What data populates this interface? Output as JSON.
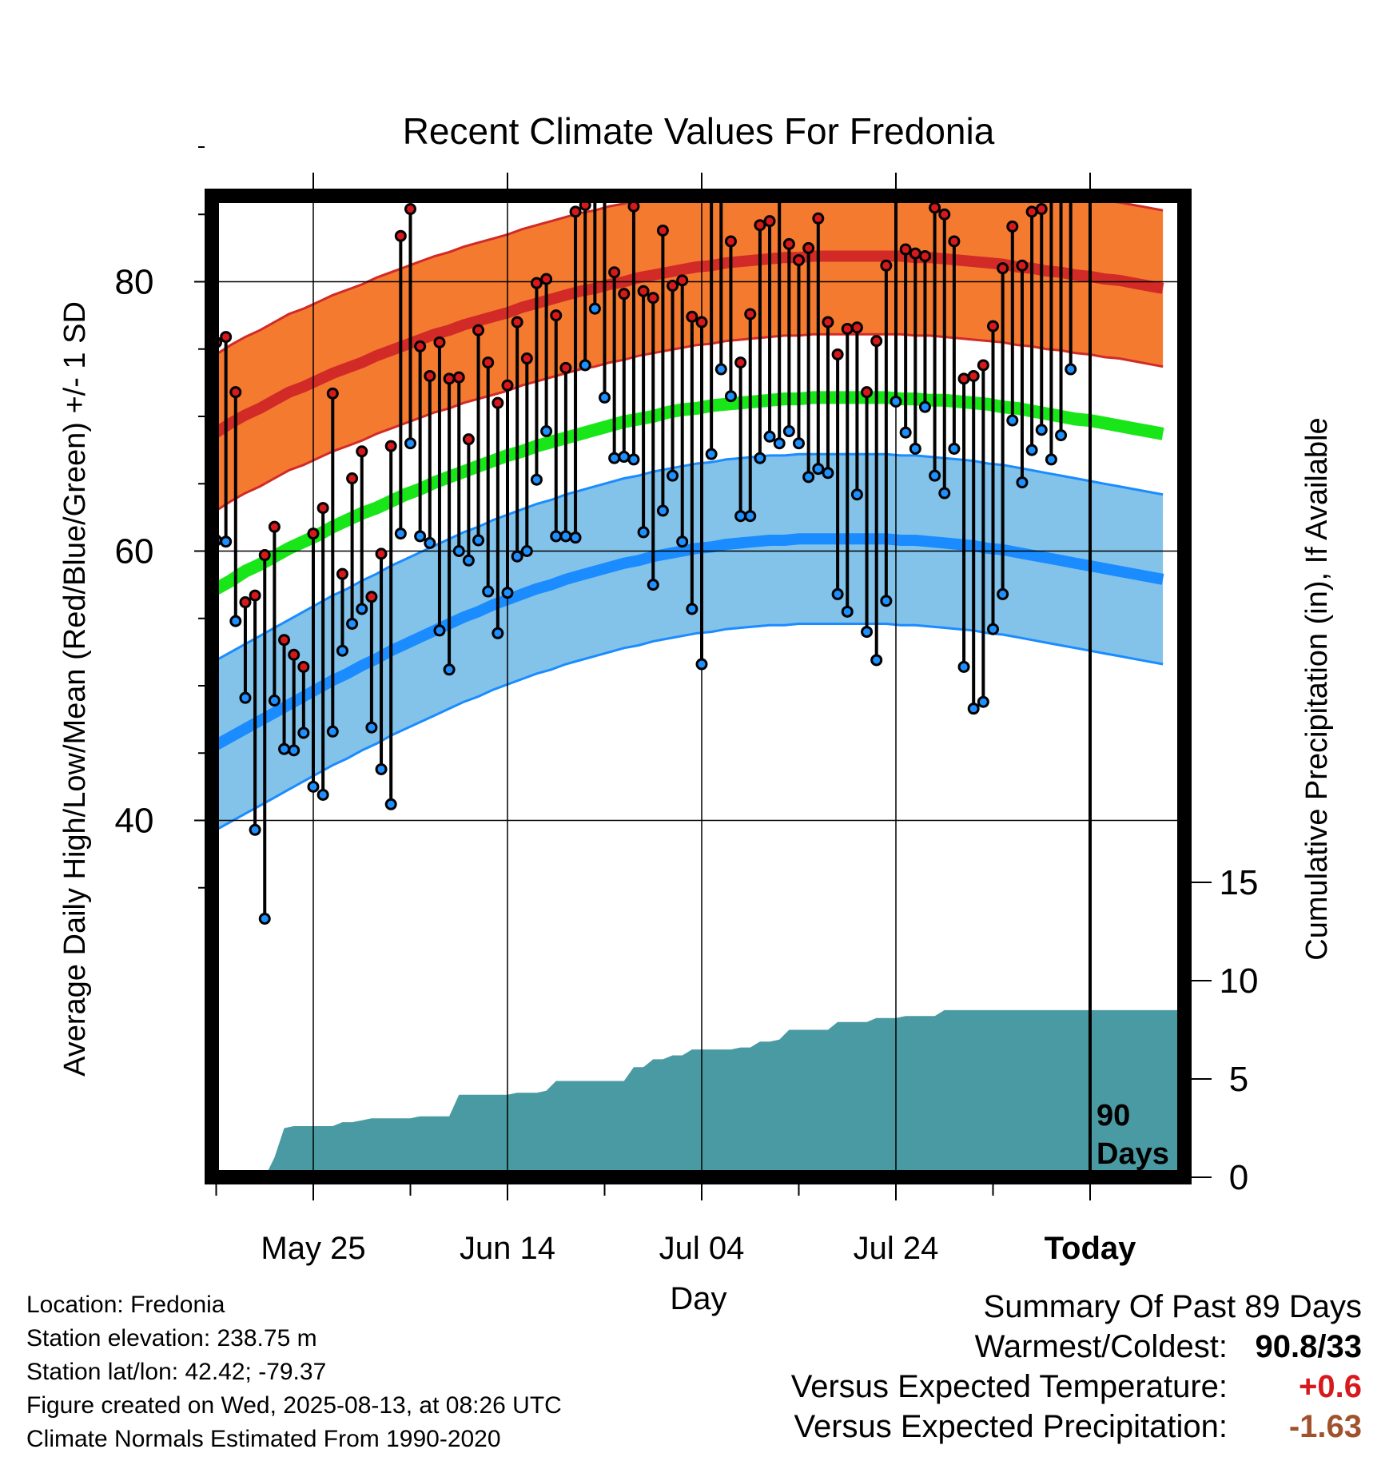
{
  "chart_data": {
    "type": "line",
    "title": "Recent Climate Values For Fredonia",
    "xlabel": "Day",
    "ylabel_left": "Average Daily High/Low/Mean (Red/Blue/Green) +/- 1 SD",
    "ylabel_right": "Cumulative Precipitation (in), If Available",
    "x_ticks": [
      "May 25",
      "Jun 14",
      "Jul 04",
      "Jul 24",
      "Today"
    ],
    "x_tick_days": [
      10,
      30,
      50,
      70,
      90
    ],
    "xlim": [
      -1,
      99
    ],
    "y_left_ticks": [
      40,
      60,
      80
    ],
    "y_left_lim": [
      24,
      96
    ],
    "y_right_ticks": [
      0,
      5,
      10,
      15
    ],
    "y_right_lim": [
      0,
      50
    ],
    "grid": true,
    "marker_label": "90\nDays",
    "today_day": 90,
    "series": [
      {
        "name": "Observed High",
        "color": "#d7191c",
        "values": [
          75.5,
          75.9,
          71.8,
          56.2,
          56.7,
          59.7,
          61.8,
          53.4,
          52.3,
          51.4,
          61.3,
          63.2,
          71.7,
          58.3,
          65.4,
          67.4,
          56.6,
          59.8,
          67.8,
          83.4,
          85.4,
          75.2,
          73.0,
          75.5,
          72.8,
          72.9,
          68.3,
          76.4,
          74.0,
          71.0,
          72.3,
          77.0,
          74.3,
          79.9,
          80.2,
          77.5,
          73.6,
          85.2,
          85.7,
          89.3,
          89.3,
          80.7,
          79.1,
          85.6,
          79.3,
          78.8,
          83.8,
          79.7,
          80.1,
          77.4,
          77.0,
          86.6,
          89.3,
          83.0,
          74.0,
          77.6,
          84.2,
          84.5,
          90.8,
          82.8,
          81.6,
          82.5,
          84.7,
          77.0,
          74.6,
          76.5,
          76.6,
          71.8,
          75.6,
          81.2,
          87.6,
          82.4,
          82.1,
          81.9,
          85.5,
          85.0,
          83.0,
          72.8,
          73.0,
          73.8,
          76.7,
          81.0,
          84.1,
          81.2,
          85.2,
          85.4,
          86.6,
          87.4,
          88.1
        ]
      },
      {
        "name": "Observed Low",
        "color": "#1e90ff",
        "values": [
          60.8,
          60.7,
          54.8,
          49.1,
          39.3,
          32.7,
          48.9,
          45.3,
          45.2,
          46.5,
          42.5,
          41.9,
          46.6,
          52.6,
          54.6,
          55.7,
          46.9,
          43.8,
          41.2,
          61.3,
          68.0,
          61.1,
          60.6,
          54.1,
          51.2,
          60.0,
          59.3,
          60.8,
          57.0,
          53.9,
          56.9,
          59.6,
          60.0,
          65.3,
          68.9,
          61.1,
          61.1,
          61.0,
          73.8,
          78.0,
          71.4,
          66.9,
          67.0,
          66.8,
          61.4,
          57.5,
          63.0,
          65.6,
          60.7,
          55.7,
          51.6,
          67.2,
          73.5,
          71.5,
          62.6,
          62.6,
          66.9,
          68.5,
          68.0,
          68.9,
          68.0,
          65.5,
          66.1,
          65.8,
          56.8,
          55.5,
          64.2,
          54.0,
          51.9,
          56.3,
          71.1,
          68.8,
          67.6,
          70.7,
          65.6,
          64.3,
          67.6,
          51.4,
          48.3,
          48.8,
          54.2,
          56.8,
          69.7,
          65.1,
          67.5,
          69.0,
          66.8,
          68.6,
          73.5
        ]
      }
    ],
    "normal_high_mean": [
      68.8,
      69.5,
      70.1,
      70.6,
      71.2,
      71.8,
      72.2,
      72.7,
      73.2,
      73.6,
      74.0,
      74.5,
      74.9,
      75.3,
      75.7,
      76.1,
      76.4,
      76.8,
      77.1,
      77.4,
      77.7,
      78.1,
      78.4,
      78.7,
      79.0,
      79.3,
      79.5,
      79.8,
      80.0,
      80.3,
      80.5,
      80.7,
      80.9,
      81.1,
      81.2,
      81.4,
      81.5,
      81.6,
      81.7,
      81.8,
      81.8,
      81.9,
      81.9,
      81.9,
      81.9,
      81.9,
      81.9,
      81.9,
      81.8,
      81.8,
      81.7,
      81.6,
      81.5,
      81.4,
      81.3,
      81.1,
      81.0,
      80.8,
      80.7,
      80.5,
      80.4,
      80.2,
      80.1,
      79.9,
      79.7,
      79.5
    ],
    "normal_high_sd": 5.8,
    "normal_low_mean": [
      45.6,
      46.2,
      46.8,
      47.4,
      48.0,
      48.6,
      49.2,
      49.8,
      50.4,
      50.9,
      51.5,
      52.0,
      52.6,
      53.1,
      53.6,
      54.1,
      54.6,
      55.1,
      55.5,
      56.0,
      56.4,
      56.8,
      57.2,
      57.5,
      57.9,
      58.2,
      58.5,
      58.8,
      59.1,
      59.3,
      59.6,
      59.8,
      60.0,
      60.2,
      60.3,
      60.5,
      60.6,
      60.7,
      60.8,
      60.8,
      60.9,
      60.9,
      60.9,
      60.9,
      60.9,
      60.9,
      60.9,
      60.8,
      60.8,
      60.7,
      60.6,
      60.5,
      60.4,
      60.2,
      60.1,
      59.9,
      59.7,
      59.5,
      59.3,
      59.1,
      58.9,
      58.7,
      58.5,
      58.3,
      58.1,
      57.9
    ],
    "normal_low_sd": 6.3,
    "normal_mean": [
      57.2,
      57.8,
      58.5,
      59.0,
      59.6,
      60.2,
      60.7,
      61.2,
      61.8,
      62.3,
      62.8,
      63.2,
      63.7,
      64.2,
      64.6,
      65.1,
      65.5,
      65.9,
      66.3,
      66.7,
      67.1,
      67.4,
      67.8,
      68.1,
      68.4,
      68.7,
      69.0,
      69.3,
      69.6,
      69.8,
      70.0,
      70.3,
      70.5,
      70.6,
      70.8,
      70.9,
      71.0,
      71.1,
      71.2,
      71.3,
      71.3,
      71.4,
      71.4,
      71.4,
      71.4,
      71.4,
      71.4,
      71.3,
      71.3,
      71.2,
      71.2,
      71.1,
      71.0,
      70.9,
      70.7,
      70.6,
      70.4,
      70.2,
      70.0,
      69.8,
      69.7,
      69.5,
      69.3,
      69.1,
      68.9,
      68.7
    ],
    "normals_day_step": 1.5,
    "cumulative_precip": [
      0,
      0,
      0,
      0,
      0,
      0,
      1.0,
      2.5,
      2.6,
      2.6,
      2.6,
      2.6,
      2.6,
      2.8,
      2.8,
      2.9,
      3.0,
      3.0,
      3.0,
      3.0,
      3.0,
      3.1,
      3.1,
      3.1,
      3.1,
      4.2,
      4.2,
      4.2,
      4.2,
      4.2,
      4.2,
      4.3,
      4.3,
      4.3,
      4.4,
      4.9,
      4.9,
      4.9,
      4.9,
      4.9,
      4.9,
      4.9,
      4.9,
      5.6,
      5.6,
      6.0,
      6.0,
      6.2,
      6.2,
      6.5,
      6.5,
      6.5,
      6.5,
      6.5,
      6.6,
      6.6,
      6.9,
      6.9,
      7.0,
      7.5,
      7.5,
      7.5,
      7.5,
      7.5,
      7.9,
      7.9,
      7.9,
      7.9,
      8.1,
      8.1,
      8.1,
      8.2,
      8.2,
      8.2,
      8.2,
      8.5,
      8.5,
      8.5,
      8.5,
      8.5,
      8.5,
      8.5,
      8.5,
      8.5,
      8.5,
      8.5,
      8.5,
      8.5,
      8.5,
      8.5,
      8.5,
      8.5,
      8.5,
      8.5,
      8.5,
      8.5,
      8.5,
      8.5,
      8.5,
      8.5
    ],
    "precip_color": "#4a9aa3",
    "colors": {
      "high_band": "#f47a30",
      "high_line": "#d12a27",
      "low_band": "#83c2e9",
      "low_line": "#1a8cff",
      "mean_line": "#19e619"
    }
  },
  "info": {
    "location": "Location: Fredonia",
    "elevation": "Station elevation: 238.75 m",
    "latlon": "Station lat/lon: 42.42; -79.37",
    "created": "Figure created on Wed, 2025-08-13, at 08:26 UTC",
    "normals": "Climate Normals Estimated From 1990-2020"
  },
  "summary": {
    "title": "Summary Of Past 89 Days",
    "warmest_label": "Warmest/Coldest:",
    "warmest_value": "90.8/33",
    "temp_label": "Versus Expected Temperature:",
    "temp_value": "+0.6",
    "precip_label": "Versus Expected Precipitation:",
    "precip_value": "-1.63"
  }
}
